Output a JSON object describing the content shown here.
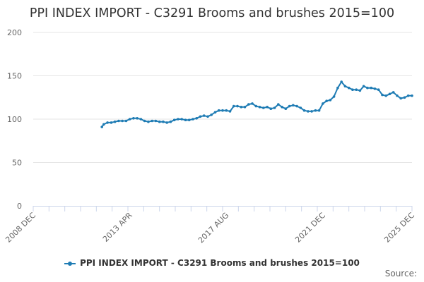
{
  "chart_data": {
    "type": "line",
    "title": "PPI INDEX IMPORT - C3291 Brooms and brushes 2015=100",
    "xlabel": "",
    "ylabel": "",
    "ylim": [
      0,
      200
    ],
    "y_ticks": [
      "0",
      "50",
      "100",
      "150",
      "200"
    ],
    "x_ticks": [
      "2008 DEC",
      "2013 APR",
      "2017 AUG",
      "2021 DEC",
      "2025 DEC"
    ],
    "grid": "horizontal",
    "legend": "bottom-center",
    "color": "#1f7cb4",
    "series": [
      {
        "name": "PPI INDEX IMPORT - C3291 Brooms and brushes 2015=100",
        "points": [
          [
            "2012-01",
            91
          ],
          [
            "2012-02",
            94
          ],
          [
            "2012-04",
            96
          ],
          [
            "2012-06",
            96
          ],
          [
            "2012-08",
            97
          ],
          [
            "2012-10",
            98
          ],
          [
            "2012-12",
            98
          ],
          [
            "2013-02",
            98
          ],
          [
            "2013-04",
            100
          ],
          [
            "2013-06",
            101
          ],
          [
            "2013-08",
            101
          ],
          [
            "2013-10",
            100
          ],
          [
            "2013-12",
            98
          ],
          [
            "2014-02",
            97
          ],
          [
            "2014-04",
            98
          ],
          [
            "2014-06",
            98
          ],
          [
            "2014-08",
            97
          ],
          [
            "2014-10",
            97
          ],
          [
            "2014-12",
            96
          ],
          [
            "2015-02",
            97
          ],
          [
            "2015-04",
            99
          ],
          [
            "2015-06",
            100
          ],
          [
            "2015-08",
            100
          ],
          [
            "2015-10",
            99
          ],
          [
            "2015-12",
            99
          ],
          [
            "2016-02",
            100
          ],
          [
            "2016-04",
            101
          ],
          [
            "2016-06",
            103
          ],
          [
            "2016-08",
            104
          ],
          [
            "2016-10",
            103
          ],
          [
            "2016-12",
            105
          ],
          [
            "2017-02",
            108
          ],
          [
            "2017-04",
            110
          ],
          [
            "2017-06",
            110
          ],
          [
            "2017-08",
            110
          ],
          [
            "2017-10",
            109
          ],
          [
            "2017-12",
            115
          ],
          [
            "2018-02",
            115
          ],
          [
            "2018-04",
            114
          ],
          [
            "2018-06",
            114
          ],
          [
            "2018-08",
            117
          ],
          [
            "2018-10",
            118
          ],
          [
            "2018-12",
            115
          ],
          [
            "2019-02",
            114
          ],
          [
            "2019-04",
            113
          ],
          [
            "2019-06",
            114
          ],
          [
            "2019-08",
            112
          ],
          [
            "2019-10",
            113
          ],
          [
            "2019-12",
            117
          ],
          [
            "2020-02",
            114
          ],
          [
            "2020-04",
            112
          ],
          [
            "2020-06",
            115
          ],
          [
            "2020-08",
            116
          ],
          [
            "2020-10",
            115
          ],
          [
            "2020-12",
            113
          ],
          [
            "2021-02",
            110
          ],
          [
            "2021-04",
            109
          ],
          [
            "2021-06",
            109
          ],
          [
            "2021-08",
            110
          ],
          [
            "2021-10",
            110
          ],
          [
            "2021-12",
            118
          ],
          [
            "2022-02",
            121
          ],
          [
            "2022-04",
            122
          ],
          [
            "2022-06",
            126
          ],
          [
            "2022-08",
            136
          ],
          [
            "2022-10",
            143
          ],
          [
            "2022-12",
            138
          ],
          [
            "2023-02",
            136
          ],
          [
            "2023-04",
            134
          ],
          [
            "2023-06",
            134
          ],
          [
            "2023-08",
            133
          ],
          [
            "2023-10",
            138
          ],
          [
            "2023-12",
            136
          ],
          [
            "2024-02",
            136
          ],
          [
            "2024-04",
            135
          ],
          [
            "2024-06",
            134
          ],
          [
            "2024-08",
            128
          ],
          [
            "2024-10",
            127
          ],
          [
            "2024-12",
            129
          ],
          [
            "2025-02",
            131
          ],
          [
            "2025-04",
            127
          ],
          [
            "2025-06",
            124
          ],
          [
            "2025-08",
            125
          ],
          [
            "2025-10",
            127
          ],
          [
            "2025-12",
            127
          ]
        ]
      }
    ]
  },
  "credits": "Source:"
}
